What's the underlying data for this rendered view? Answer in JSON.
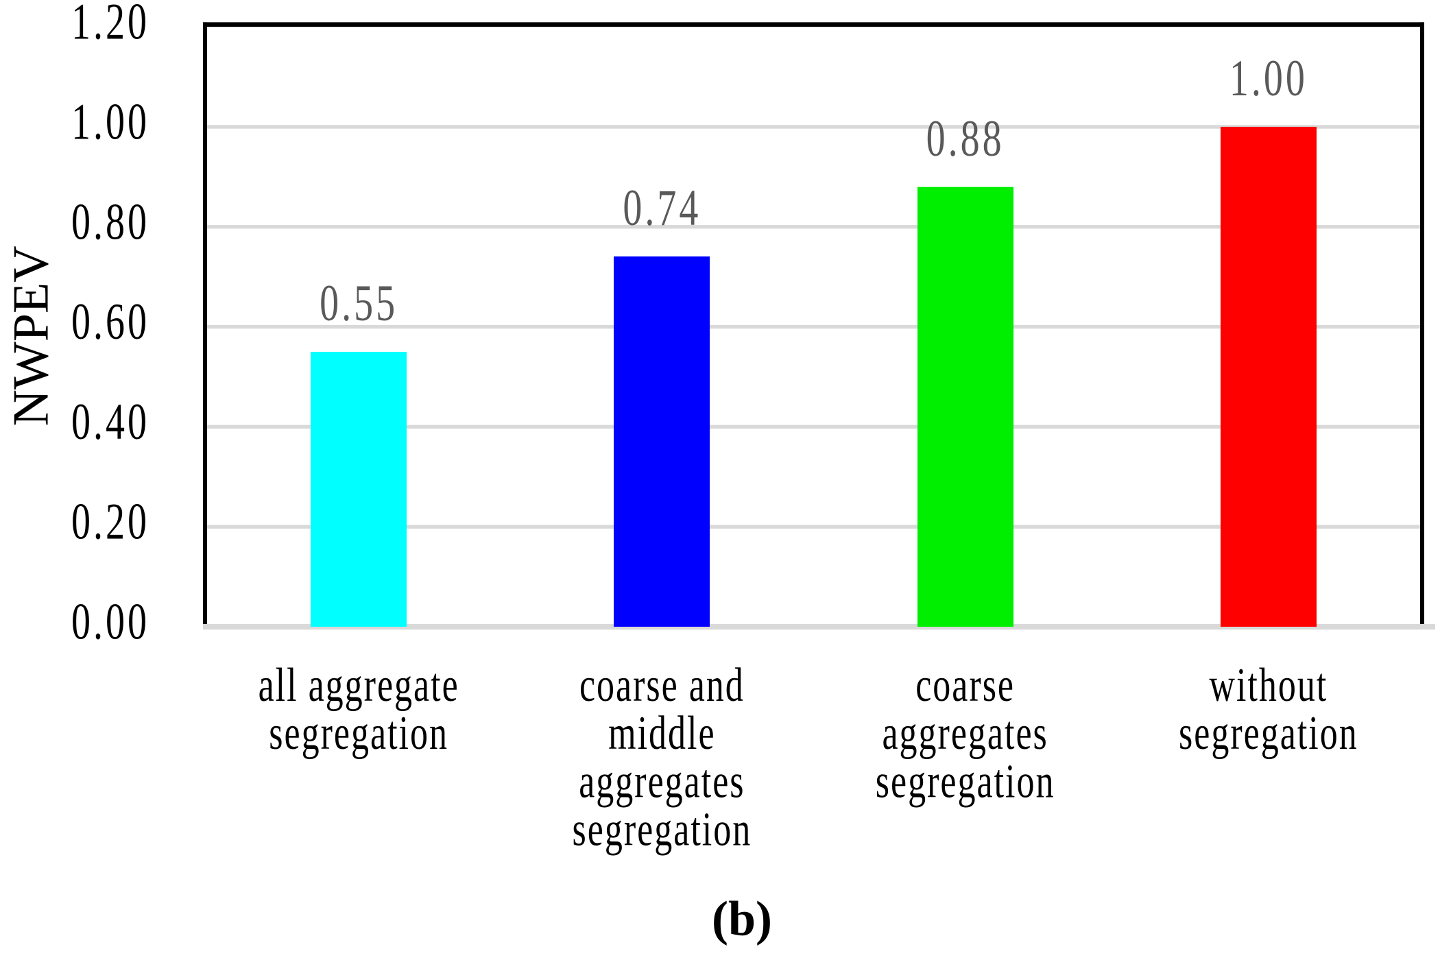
{
  "figure": {
    "caption": "(b)"
  },
  "chart_data": {
    "type": "bar",
    "title": "",
    "xlabel": "",
    "ylabel": "NWPEV",
    "ylim": [
      0,
      1.2
    ],
    "y_tick_step": 0.2,
    "y_ticks": [
      "0.00",
      "0.20",
      "0.40",
      "0.60",
      "0.80",
      "1.00",
      "1.20"
    ],
    "grid": true,
    "legend": false,
    "gridline_color": "#D9D9D9",
    "data_label_color": "#595959",
    "categories": [
      {
        "label": "all aggregate segregation",
        "lines": [
          "all aggregate",
          "segregation"
        ]
      },
      {
        "label": "coarse and middle aggregates segregation",
        "lines": [
          "coarse and",
          "middle",
          "aggregates",
          "segregation"
        ]
      },
      {
        "label": "coarse aggregates segregation",
        "lines": [
          "coarse",
          "aggregates",
          "segregation"
        ]
      },
      {
        "label": "without segregation",
        "lines": [
          "without",
          "segregation"
        ]
      }
    ],
    "values": [
      0.55,
      0.74,
      0.88,
      1.0
    ],
    "data_labels": [
      "0.55",
      "0.74",
      "0.88",
      "1.00"
    ],
    "bar_colors": [
      "#00FFFF",
      "#0000FF",
      "#00EE00",
      "#FF0000"
    ]
  }
}
